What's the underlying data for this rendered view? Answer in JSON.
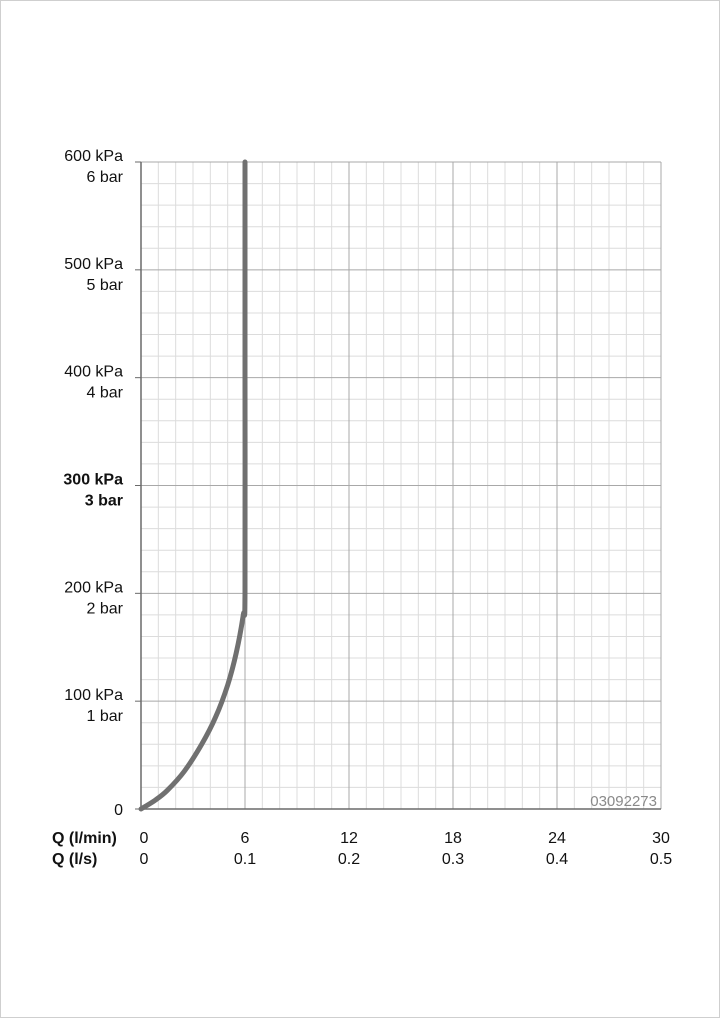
{
  "chart_data": {
    "type": "line",
    "title": "",
    "code": "03092273",
    "x_axis": {
      "row1_label": "Q (l/min)",
      "row2_label": "Q (l/s)",
      "range": [
        0,
        30
      ],
      "ticks_primary": [
        "0",
        "6",
        "12",
        "18",
        "24",
        "30"
      ],
      "ticks_secondary": [
        "0",
        "0.1",
        "0.2",
        "0.3",
        "0.4",
        "0.5"
      ]
    },
    "y_axis": {
      "unit": "kPa",
      "range": [
        0,
        600
      ],
      "ticks": [
        {
          "value": 600,
          "line1": "600 kPa",
          "line2": "6 bar",
          "bold": false
        },
        {
          "value": 500,
          "line1": "500 kPa",
          "line2": "5 bar",
          "bold": false
        },
        {
          "value": 400,
          "line1": "400 kPa",
          "line2": "4 bar",
          "bold": false
        },
        {
          "value": 300,
          "line1": "300 kPa",
          "line2": "3 bar",
          "bold": true
        },
        {
          "value": 200,
          "line1": "200 kPa",
          "line2": "2 bar",
          "bold": false
        },
        {
          "value": 100,
          "line1": "100 kPa",
          "line2": "1 bar",
          "bold": false
        },
        {
          "value": 0,
          "line1": "0",
          "line2": "",
          "bold": false
        }
      ]
    },
    "grid": true,
    "series": [
      {
        "color": "#707070",
        "x": [
          0,
          0.8,
          1.5,
          2.5,
          3.5,
          4.3,
          5.0,
          5.5,
          5.9,
          6.0,
          6.0,
          6.0
        ],
        "y": [
          0,
          8,
          17,
          35,
          60,
          85,
          115,
          145,
          180,
          200,
          400,
          600
        ]
      }
    ]
  }
}
